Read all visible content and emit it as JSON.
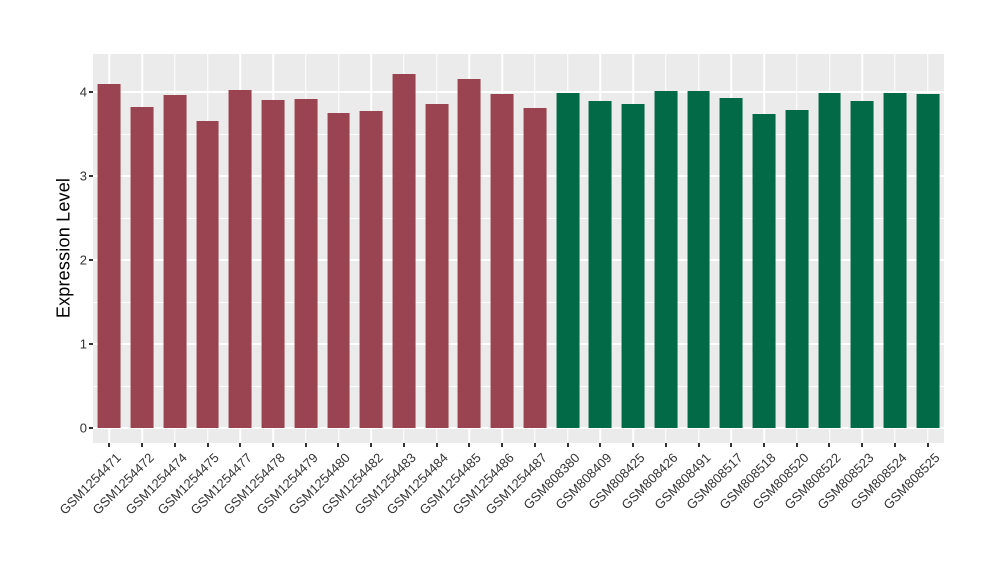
{
  "chart_data": {
    "type": "bar",
    "title": "",
    "xlabel": "",
    "ylabel": "Expression Level",
    "categories": [
      "GSM1254471",
      "GSM1254472",
      "GSM1254474",
      "GSM1254475",
      "GSM1254477",
      "GSM1254478",
      "GSM1254479",
      "GSM1254480",
      "GSM1254482",
      "GSM1254483",
      "GSM1254484",
      "GSM1254485",
      "GSM1254486",
      "GSM1254487",
      "GSM808380",
      "GSM808409",
      "GSM808425",
      "GSM808426",
      "GSM808491",
      "GSM808517",
      "GSM808518",
      "GSM808520",
      "GSM808522",
      "GSM808523",
      "GSM808524",
      "GSM808525"
    ],
    "values": [
      4.09,
      3.82,
      3.96,
      3.65,
      4.02,
      3.91,
      3.92,
      3.75,
      3.77,
      4.21,
      3.86,
      4.16,
      3.98,
      3.81,
      3.99,
      3.89,
      3.86,
      4.01,
      4.01,
      3.93,
      3.74,
      3.79,
      3.99,
      3.89,
      3.99,
      3.98
    ],
    "bar_colors": [
      "#9B4451",
      "#9B4451",
      "#9B4451",
      "#9B4451",
      "#9B4451",
      "#9B4451",
      "#9B4451",
      "#9B4451",
      "#9B4451",
      "#9B4451",
      "#9B4451",
      "#9B4451",
      "#9B4451",
      "#9B4451",
      "#026A47",
      "#026A47",
      "#026A47",
      "#026A47",
      "#026A47",
      "#026A47",
      "#026A47",
      "#026A47",
      "#026A47",
      "#026A47",
      "#026A47",
      "#026A47"
    ],
    "yticks": [
      0,
      1,
      2,
      3,
      4
    ],
    "minor_ticks": [
      0.5,
      1.5,
      2.5,
      3.5
    ],
    "ylim": [
      -0.18,
      4.45
    ],
    "grid": "on",
    "legend": "none",
    "colors": {
      "group_red": "#9B4451",
      "group_green": "#026A47",
      "panel_background": "#EBEBEB",
      "grid_line": "#FFFFFF",
      "axis_text": "#333333",
      "outer_background": "#FFFFFF"
    }
  }
}
